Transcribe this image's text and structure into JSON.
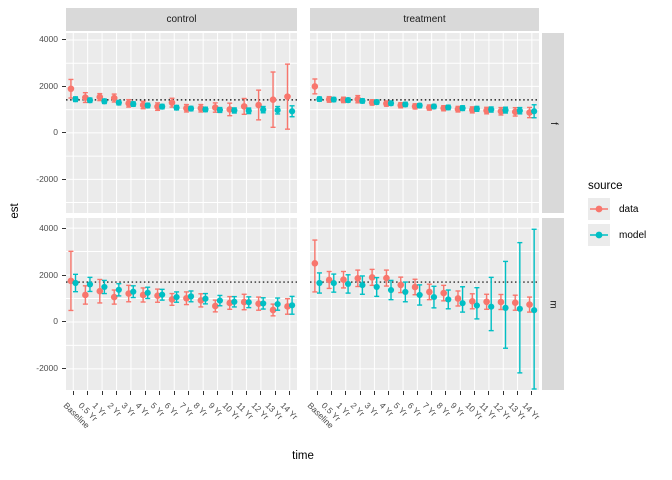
{
  "y_axis": {
    "title": "est"
  },
  "x_axis": {
    "title": "time"
  },
  "legend": {
    "title": "source",
    "items": [
      {
        "label": "data",
        "color": "#F8766D"
      },
      {
        "label": "model",
        "color": "#00BFC4"
      }
    ]
  },
  "colors": {
    "panel_bg": "#EBEBEB",
    "strip_bg": "#D9D9D9",
    "grid": "#FFFFFF",
    "tick_text": "#4D4D4D",
    "reference_line": "#000000",
    "legend_key_bg": "#EBEBEB"
  },
  "chart_data": {
    "type": "scatter",
    "subtype": "dot-with-errorbar, 2x2 facet grid",
    "facet_cols": [
      "control",
      "treatment"
    ],
    "facet_rows": [
      "f",
      "m"
    ],
    "categories": [
      "Baseline",
      "0.5 Yr",
      "1 Yr",
      "2 Yr",
      "3 Yr",
      "4 Yr",
      "5 Yr",
      "6 Yr",
      "7 Yr",
      "8 Yr",
      "9 Yr",
      "10 Yr",
      "11 Yr",
      "12 Yr",
      "13 Yr",
      "14 Yr"
    ],
    "yticks": [
      4000,
      2000,
      0,
      -2000
    ],
    "ylim": {
      "f": [
        -3450,
        4300
      ],
      "m": [
        -2900,
        4430
      ]
    },
    "reference_line": {
      "f": 1420,
      "m": 1700
    },
    "series_colors": {
      "data": "#F8766D",
      "model": "#00BFC4"
    },
    "panels": [
      {
        "row": "f",
        "col": "control",
        "series": [
          {
            "name": "data",
            "values": [
              1900,
              1520,
              1540,
              1500,
              1270,
              1200,
              1130,
              1300,
              1060,
              1060,
              1090,
              1010,
              1140,
              1200,
              1430,
              1560
            ],
            "lower": [
              1500,
              1310,
              1390,
              1330,
              1110,
              1040,
              970,
              1110,
              900,
              900,
              890,
              740,
              800,
              560,
              240,
              160
            ],
            "upper": [
              2300,
              1730,
              1690,
              1670,
              1430,
              1360,
              1290,
              1490,
              1220,
              1220,
              1290,
              1280,
              1480,
              1840,
              2620,
              2960
            ]
          },
          {
            "name": "model",
            "values": [
              1450,
              1405,
              1360,
              1300,
              1240,
              1180,
              1130,
              1085,
              1045,
              1010,
              985,
              965,
              950,
              1000,
              975,
              930
            ],
            "lower": [
              1350,
              1310,
              1265,
              1205,
              1145,
              1085,
              1035,
              990,
              950,
              915,
              880,
              855,
              830,
              865,
              815,
              695
            ],
            "upper": [
              1550,
              1500,
              1455,
              1395,
              1335,
              1275,
              1225,
              1180,
              1140,
              1105,
              1090,
              1075,
              1070,
              1135,
              1135,
              1165
            ]
          }
        ]
      },
      {
        "row": "f",
        "col": "treatment",
        "series": [
          {
            "name": "data",
            "values": [
              2000,
              1440,
              1420,
              1450,
              1310,
              1260,
              1190,
              1140,
              1090,
              1060,
              1020,
              990,
              960,
              930,
              905,
              875
            ],
            "lower": [
              1680,
              1320,
              1305,
              1295,
              1195,
              1150,
              1080,
              1030,
              980,
              950,
              900,
              860,
              820,
              770,
              725,
              655
            ],
            "upper": [
              2320,
              1560,
              1535,
              1605,
              1425,
              1370,
              1300,
              1250,
              1200,
              1170,
              1140,
              1120,
              1100,
              1090,
              1085,
              1095
            ]
          },
          {
            "name": "model",
            "values": [
              1455,
              1435,
              1410,
              1375,
              1325,
              1275,
              1225,
              1175,
              1135,
              1095,
              1065,
              1035,
              1005,
              980,
              955,
              930
            ],
            "lower": [
              1365,
              1345,
              1320,
              1285,
              1235,
              1185,
              1135,
              1085,
              1045,
              1000,
              965,
              930,
              895,
              855,
              820,
              650
            ],
            "upper": [
              1545,
              1525,
              1500,
              1465,
              1415,
              1365,
              1315,
              1265,
              1225,
              1190,
              1165,
              1140,
              1115,
              1105,
              1090,
              1210
            ]
          }
        ]
      },
      {
        "row": "m",
        "col": "control",
        "series": [
          {
            "name": "data",
            "values": [
              1750,
              1150,
              1310,
              1060,
              1210,
              1150,
              1120,
              960,
              1010,
              920,
              680,
              810,
              850,
              780,
              510,
              660
            ],
            "lower": [
              490,
              760,
              810,
              760,
              860,
              850,
              840,
              710,
              740,
              640,
              430,
              540,
              520,
              500,
              260,
              330
            ],
            "upper": [
              3010,
              1540,
              1810,
              1360,
              1560,
              1450,
              1400,
              1210,
              1280,
              1200,
              930,
              1080,
              1180,
              1060,
              760,
              990
            ]
          },
          {
            "name": "model",
            "values": [
              1660,
              1600,
              1490,
              1370,
              1290,
              1240,
              1160,
              1060,
              1090,
              990,
              910,
              860,
              840,
              790,
              760,
              710
            ],
            "lower": [
              1290,
              1300,
              1210,
              1110,
              1040,
              1000,
              930,
              840,
              860,
              770,
              690,
              640,
              610,
              550,
              500,
              330
            ],
            "upper": [
              2030,
              1900,
              1770,
              1630,
              1540,
              1480,
              1390,
              1280,
              1320,
              1210,
              1130,
              1080,
              1070,
              1030,
              1020,
              1090
            ]
          }
        ]
      },
      {
        "row": "m",
        "col": "treatment",
        "series": [
          {
            "name": "data",
            "values": [
              2500,
              1790,
              1800,
              1860,
              1900,
              1870,
              1580,
              1490,
              1280,
              1230,
              1000,
              880,
              860,
              850,
              820,
              740
            ],
            "lower": [
              1280,
              1430,
              1450,
              1510,
              1560,
              1530,
              1250,
              1160,
              950,
              900,
              680,
              560,
              540,
              530,
              500,
              420
            ],
            "upper": [
              3490,
              2150,
              2150,
              2210,
              2240,
              2210,
              1910,
              1820,
              1610,
              1560,
              1320,
              1200,
              1180,
              1170,
              1140,
              1060
            ]
          },
          {
            "name": "model",
            "values": [
              1660,
              1655,
              1620,
              1570,
              1490,
              1360,
              1280,
              1150,
              1060,
              960,
              800,
              700,
              650,
              600,
              560,
              500
            ],
            "lower": [
              1230,
              1270,
              1230,
              1180,
              1090,
              950,
              860,
              720,
              600,
              560,
              420,
              130,
              -370,
              -1120,
              -2170,
              -2900
            ],
            "upper": [
              2090,
              2040,
              2010,
              1960,
              1890,
              1770,
              1700,
              1580,
              1520,
              1360,
              1500,
              1460,
              1900,
              2580,
              3380,
              3950
            ]
          }
        ]
      }
    ]
  }
}
